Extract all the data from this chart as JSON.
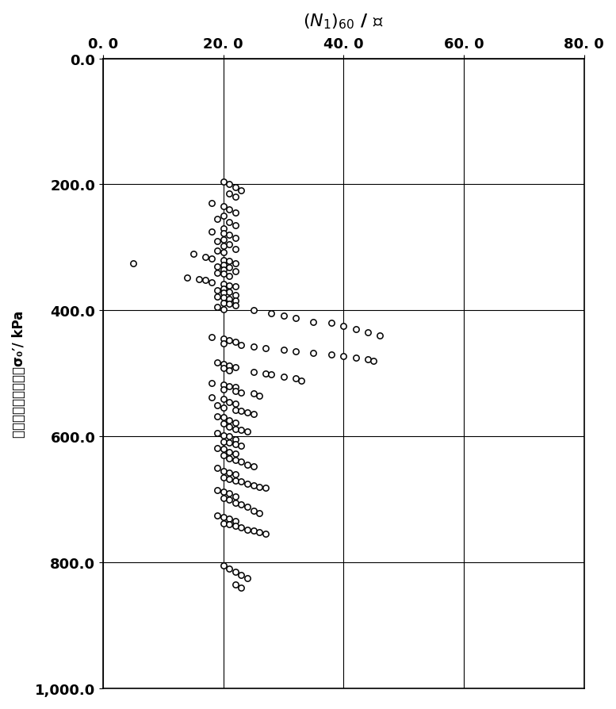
{
  "title": "(N₁)₆₀ / 击",
  "ylabel": "试验点上覆有效应力σ₀′/ kPa",
  "xlim": [
    0,
    80
  ],
  "ylim": [
    1000,
    0
  ],
  "xticks": [
    0.0,
    20.0,
    40.0,
    60.0,
    80.0
  ],
  "yticks": [
    0.0,
    200.0,
    400.0,
    600.0,
    800.0,
    1000.0
  ],
  "xtick_labels": [
    "0. 0",
    "20. 0",
    "40. 0",
    "60. 0",
    "80. 0"
  ],
  "ytick_labels": [
    "0.0",
    "200.0",
    "400.0",
    "600.0",
    "800.0",
    "1,000.0"
  ],
  "marker_facecolor": "white",
  "marker_edgecolor": "black",
  "marker_size": 28,
  "marker_linewidth": 1.1,
  "scatter_x": [
    20,
    21,
    22,
    23,
    21,
    22,
    18,
    20,
    21,
    22,
    20,
    19,
    21,
    22,
    20,
    18,
    20,
    21,
    22,
    20,
    19,
    21,
    20,
    22,
    19,
    20,
    15,
    17,
    18,
    20,
    21,
    22,
    20,
    19,
    21,
    20,
    22,
    19,
    20,
    21,
    14,
    16,
    17,
    18,
    20,
    21,
    22,
    20,
    19,
    21,
    20,
    22,
    19,
    20,
    21,
    22,
    20,
    21,
    22,
    19,
    20,
    25,
    28,
    30,
    32,
    35,
    38,
    40,
    42,
    44,
    46,
    18,
    20,
    21,
    22,
    20,
    23,
    25,
    27,
    30,
    32,
    35,
    38,
    40,
    42,
    44,
    45,
    19,
    20,
    21,
    22,
    20,
    21,
    25,
    27,
    28,
    30,
    32,
    33,
    18,
    20,
    21,
    22,
    20,
    22,
    23,
    25,
    26,
    18,
    20,
    21,
    22,
    19,
    20,
    22,
    23,
    24,
    25,
    19,
    20,
    21,
    22,
    20,
    21,
    22,
    23,
    24,
    19,
    20,
    21,
    22,
    20,
    21,
    22,
    23,
    19,
    20,
    21,
    22,
    20,
    21,
    22,
    23,
    24,
    25,
    19,
    20,
    21,
    22,
    20,
    21,
    22,
    23,
    24,
    25,
    26,
    27,
    19,
    20,
    21,
    22,
    20,
    21,
    22,
    23,
    24,
    25,
    26,
    19,
    20,
    21,
    22,
    20,
    21,
    22,
    23,
    24,
    25,
    26,
    27,
    20,
    21,
    22,
    23,
    24,
    22,
    23,
    5
  ],
  "scatter_y": [
    195,
    200,
    205,
    210,
    215,
    220,
    230,
    235,
    240,
    245,
    250,
    255,
    260,
    265,
    270,
    275,
    278,
    280,
    285,
    288,
    290,
    295,
    298,
    302,
    305,
    308,
    310,
    315,
    318,
    320,
    322,
    325,
    328,
    330,
    332,
    335,
    338,
    340,
    342,
    345,
    348,
    350,
    352,
    355,
    358,
    360,
    362,
    365,
    368,
    370,
    372,
    375,
    378,
    380,
    382,
    385,
    388,
    390,
    392,
    395,
    398,
    400,
    405,
    408,
    412,
    418,
    420,
    425,
    430,
    435,
    440,
    442,
    445,
    448,
    450,
    452,
    455,
    458,
    460,
    462,
    465,
    468,
    470,
    472,
    475,
    478,
    480,
    482,
    485,
    488,
    490,
    492,
    495,
    498,
    500,
    502,
    505,
    508,
    512,
    515,
    518,
    520,
    522,
    525,
    528,
    530,
    532,
    535,
    538,
    540,
    545,
    548,
    550,
    555,
    558,
    560,
    562,
    565,
    568,
    570,
    575,
    578,
    580,
    585,
    588,
    590,
    592,
    595,
    598,
    600,
    605,
    608,
    610,
    612,
    615,
    618,
    620,
    625,
    628,
    630,
    635,
    638,
    640,
    645,
    648,
    650,
    655,
    658,
    660,
    665,
    668,
    670,
    672,
    675,
    678,
    680,
    682,
    685,
    688,
    690,
    695,
    698,
    700,
    705,
    708,
    712,
    718,
    722,
    725,
    728,
    730,
    735,
    738,
    740,
    742,
    745,
    748,
    750,
    752,
    755,
    805,
    810,
    815,
    820,
    825,
    835,
    840,
    325
  ],
  "figsize": [
    7.77,
    8.95
  ],
  "dpi": 100
}
